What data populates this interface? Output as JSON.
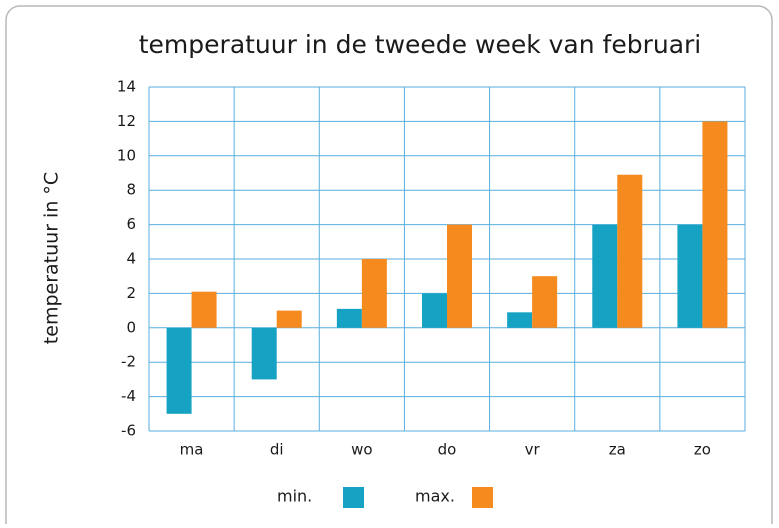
{
  "chart_data": {
    "type": "bar",
    "title": "temperatuur in de tweede week van februari",
    "y_label": "temperatuur in °C",
    "categories": [
      "ma",
      "di",
      "wo",
      "do",
      "vr",
      "za",
      "zo"
    ],
    "series": [
      {
        "name": "min.",
        "color": "#16a3c3",
        "values": [
          -5,
          -3,
          1.1,
          2,
          0.9,
          6,
          6
        ]
      },
      {
        "name": "max.",
        "color": "#f58a1f",
        "values": [
          2.1,
          1,
          4,
          6,
          3,
          8.9,
          12
        ]
      }
    ],
    "ylim": [
      -6,
      14
    ],
    "yticks": [
      -6,
      -4,
      -2,
      0,
      2,
      4,
      6,
      8,
      10,
      12,
      14
    ],
    "grid": true
  }
}
